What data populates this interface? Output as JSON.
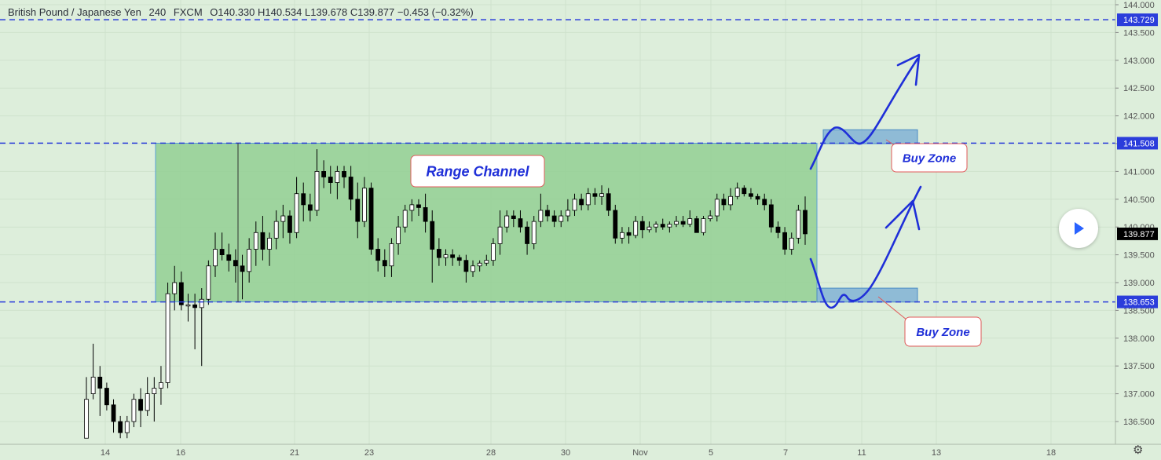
{
  "header": {
    "symbol": "British Pound / Japanese Yen",
    "interval": "240",
    "exchange": "FXCM",
    "open": "O140.330",
    "high": "H140.534",
    "low": "L139.678",
    "close": "C139.877",
    "change": "−0.453 (−0.32%)"
  },
  "chart_data": {
    "type": "candlestick",
    "title": "British Pound / Japanese Yen",
    "x_ticks": [
      "14",
      "16",
      "21",
      "23",
      "28",
      "30",
      "Nov",
      "5",
      "7",
      "11",
      "13",
      "18"
    ],
    "y_ticks": [
      "144.000",
      "143.500",
      "143.000",
      "142.500",
      "142.000",
      "141.500",
      "141.000",
      "140.500",
      "140.000",
      "139.500",
      "139.000",
      "138.500",
      "138.000",
      "137.500",
      "137.000",
      "136.500"
    ],
    "y_range": [
      136.2,
      144.1
    ],
    "price_levels": [
      {
        "label": "143.729",
        "value": 143.729
      },
      {
        "label": "141.508",
        "value": 141.508
      },
      {
        "label": "138.653",
        "value": 138.653
      }
    ],
    "last_price": {
      "label": "139.877",
      "value": 139.877
    },
    "range_channel": {
      "top": 141.508,
      "bottom": 138.653
    },
    "buy_zones": [
      {
        "top": 141.75,
        "bottom": 141.5
      },
      {
        "top": 138.9,
        "bottom": 138.65
      }
    ],
    "ohlc": [
      [
        136.2,
        137.3,
        136.2,
        136.9
      ],
      [
        137.0,
        137.9,
        136.9,
        137.3
      ],
      [
        137.3,
        137.5,
        136.6,
        137.1
      ],
      [
        137.1,
        137.2,
        136.7,
        136.8
      ],
      [
        136.8,
        136.9,
        136.3,
        136.5
      ],
      [
        136.5,
        136.6,
        136.2,
        136.3
      ],
      [
        136.3,
        136.6,
        136.2,
        136.5
      ],
      [
        136.5,
        137.0,
        136.4,
        136.9
      ],
      [
        136.9,
        137.1,
        136.4,
        136.7
      ],
      [
        136.7,
        137.3,
        136.6,
        137.0
      ],
      [
        137.0,
        137.3,
        136.5,
        137.1
      ],
      [
        137.1,
        137.5,
        136.8,
        137.2
      ],
      [
        137.2,
        139.0,
        137.1,
        138.8
      ],
      [
        138.8,
        139.3,
        138.5,
        139.0
      ],
      [
        139.0,
        139.2,
        138.5,
        138.6
      ],
      [
        138.6,
        138.8,
        138.3,
        138.6
      ],
      [
        138.6,
        138.8,
        137.8,
        138.55
      ],
      [
        138.55,
        138.9,
        137.5,
        138.7
      ],
      [
        138.7,
        139.4,
        138.6,
        139.3
      ],
      [
        139.3,
        139.9,
        139.1,
        139.6
      ],
      [
        139.6,
        139.9,
        139.4,
        139.5
      ],
      [
        139.5,
        139.7,
        139.2,
        139.4
      ],
      [
        139.4,
        139.6,
        139.0,
        139.3
      ],
      [
        139.3,
        139.5,
        138.7,
        139.2
      ],
      [
        139.2,
        139.8,
        139.0,
        139.6
      ],
      [
        139.6,
        140.1,
        139.3,
        139.9
      ],
      [
        139.9,
        140.2,
        139.4,
        139.6
      ],
      [
        139.6,
        139.9,
        139.3,
        139.8
      ],
      [
        139.8,
        140.3,
        139.6,
        140.1
      ],
      [
        140.1,
        140.4,
        139.8,
        140.2
      ],
      [
        140.2,
        140.3,
        139.7,
        139.9
      ],
      [
        139.9,
        140.9,
        139.8,
        140.6
      ],
      [
        140.6,
        140.8,
        140.1,
        140.4
      ],
      [
        140.4,
        140.6,
        140.1,
        140.3
      ],
      [
        140.3,
        141.4,
        140.2,
        141.0
      ],
      [
        141.0,
        141.2,
        140.7,
        140.9
      ],
      [
        140.9,
        141.1,
        140.6,
        140.8
      ],
      [
        140.8,
        141.1,
        140.5,
        141.0
      ],
      [
        141.0,
        141.1,
        140.7,
        140.9
      ],
      [
        140.9,
        141.1,
        140.3,
        140.5
      ],
      [
        140.5,
        140.8,
        139.8,
        140.1
      ],
      [
        140.1,
        140.9,
        140.0,
        140.7
      ],
      [
        140.7,
        140.8,
        139.5,
        139.6
      ],
      [
        139.6,
        139.8,
        139.2,
        139.4
      ],
      [
        139.4,
        139.6,
        139.1,
        139.3
      ],
      [
        139.3,
        139.8,
        139.1,
        139.7
      ],
      [
        139.7,
        140.2,
        139.5,
        140.0
      ],
      [
        140.0,
        140.4,
        139.9,
        140.3
      ],
      [
        140.3,
        140.5,
        140.1,
        140.4
      ],
      [
        140.4,
        140.5,
        140.2,
        140.35
      ],
      [
        140.35,
        140.6,
        139.9,
        140.1
      ],
      [
        140.1,
        140.3,
        139.0,
        139.6
      ],
      [
        139.6,
        139.8,
        139.3,
        139.45
      ],
      [
        139.45,
        139.6,
        139.3,
        139.5
      ],
      [
        139.5,
        139.6,
        139.3,
        139.45
      ],
      [
        139.45,
        139.5,
        139.3,
        139.4
      ],
      [
        139.4,
        139.5,
        139.0,
        139.2
      ],
      [
        139.2,
        139.4,
        139.1,
        139.3
      ],
      [
        139.3,
        139.4,
        139.2,
        139.35
      ],
      [
        139.35,
        139.5,
        139.3,
        139.4
      ],
      [
        139.4,
        139.8,
        139.3,
        139.7
      ],
      [
        139.7,
        140.3,
        139.5,
        140.0
      ],
      [
        140.0,
        140.3,
        139.9,
        140.2
      ],
      [
        140.2,
        140.3,
        140.0,
        140.15
      ],
      [
        140.15,
        140.3,
        139.9,
        140.0
      ],
      [
        140.0,
        140.1,
        139.5,
        139.7
      ],
      [
        139.7,
        140.2,
        139.6,
        140.1
      ],
      [
        140.1,
        140.6,
        140.0,
        140.3
      ],
      [
        140.3,
        140.4,
        140.1,
        140.2
      ],
      [
        140.2,
        140.3,
        140.0,
        140.1
      ],
      [
        140.1,
        140.3,
        140.0,
        140.2
      ],
      [
        140.2,
        140.5,
        140.1,
        140.3
      ],
      [
        140.3,
        140.6,
        140.2,
        140.5
      ],
      [
        140.5,
        140.6,
        140.3,
        140.4
      ],
      [
        140.4,
        140.7,
        140.3,
        140.6
      ],
      [
        140.6,
        140.7,
        140.4,
        140.55
      ],
      [
        140.55,
        140.75,
        140.4,
        140.6
      ],
      [
        140.6,
        140.7,
        140.2,
        140.3
      ],
      [
        140.3,
        140.4,
        139.7,
        139.8
      ],
      [
        139.8,
        140.0,
        139.7,
        139.9
      ],
      [
        139.9,
        140.0,
        139.7,
        139.85
      ],
      [
        139.85,
        140.2,
        139.8,
        140.1
      ],
      [
        140.1,
        140.2,
        139.8,
        139.95
      ],
      [
        139.95,
        140.1,
        139.9,
        140.0
      ],
      [
        140.0,
        140.1,
        139.9,
        140.05
      ],
      [
        140.05,
        140.15,
        139.95,
        140.0
      ],
      [
        140.0,
        140.1,
        139.9,
        140.05
      ],
      [
        140.05,
        140.2,
        140.0,
        140.1
      ],
      [
        140.1,
        140.2,
        140.0,
        140.05
      ],
      [
        140.05,
        140.3,
        140.0,
        140.15
      ],
      [
        140.15,
        140.2,
        139.9,
        139.9
      ],
      [
        139.9,
        140.2,
        139.85,
        140.15
      ],
      [
        140.15,
        140.3,
        140.1,
        140.2
      ],
      [
        140.2,
        140.6,
        140.1,
        140.5
      ],
      [
        140.5,
        140.6,
        140.3,
        140.4
      ],
      [
        140.4,
        140.7,
        140.3,
        140.55
      ],
      [
        140.55,
        140.8,
        140.5,
        140.7
      ],
      [
        140.7,
        140.75,
        140.55,
        140.6
      ],
      [
        140.6,
        140.7,
        140.5,
        140.55
      ],
      [
        140.55,
        140.6,
        140.4,
        140.5
      ],
      [
        140.5,
        140.6,
        140.3,
        140.4
      ],
      [
        140.4,
        140.5,
        139.9,
        140.0
      ],
      [
        140.0,
        140.1,
        139.8,
        139.9
      ],
      [
        139.9,
        140.0,
        139.5,
        139.6
      ],
      [
        139.6,
        139.9,
        139.5,
        139.8
      ],
      [
        139.8,
        140.4,
        139.7,
        140.3
      ],
      [
        140.3,
        140.55,
        139.68,
        139.877
      ]
    ],
    "annotations": [
      {
        "text": "Range Channel"
      },
      {
        "text": "Buy Zone"
      },
      {
        "text": "Buy Zone"
      }
    ]
  },
  "controls": {
    "play_icon": "play-icon",
    "settings_icon": "gear-icon"
  },
  "colors": {
    "background": "#ddeedb",
    "channel": "#93cf93",
    "line": "#2b3ddb",
    "buy_zone": "#74a9d4",
    "up": "#ffffff",
    "down": "#000000"
  }
}
